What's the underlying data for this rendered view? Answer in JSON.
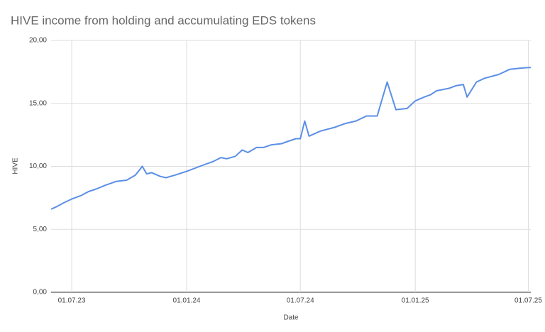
{
  "chart_data": {
    "type": "line",
    "title": "HIVE income from holding and accumulating EDS tokens",
    "x_label": "Date",
    "y_label": "HIVE",
    "x": [
      "2023-05-29",
      "2023-06-07",
      "2023-06-18",
      "2023-07-01",
      "2023-07-17",
      "2023-07-28",
      "2023-08-09",
      "2023-08-24",
      "2023-09-10",
      "2023-09-27",
      "2023-10-11",
      "2023-10-22",
      "2023-10-29",
      "2023-11-06",
      "2023-11-20",
      "2023-11-29",
      "2023-12-13",
      "2024-01-01",
      "2024-01-22",
      "2024-02-13",
      "2024-02-25",
      "2024-03-05",
      "2024-03-19",
      "2024-03-30",
      "2024-04-08",
      "2024-04-22",
      "2024-05-03",
      "2024-05-15",
      "2024-06-01",
      "2024-06-12",
      "2024-06-24",
      "2024-07-01",
      "2024-07-08",
      "2024-07-15",
      "2024-08-02",
      "2024-08-25",
      "2024-09-11",
      "2024-09-28",
      "2024-10-15",
      "2024-11-01",
      "2024-11-17",
      "2024-12-01",
      "2024-12-19",
      "2025-01-01",
      "2025-01-15",
      "2025-01-26",
      "2025-02-04",
      "2025-02-24",
      "2025-03-07",
      "2025-03-19",
      "2025-03-25",
      "2025-04-09",
      "2025-04-22",
      "2025-05-15",
      "2025-06-01",
      "2025-06-18",
      "2025-07-01",
      "2025-07-05"
    ],
    "series": [
      {
        "name": "HIVE",
        "color": "#5b8fe6",
        "values": [
          6.6,
          6.8,
          7.1,
          7.4,
          7.7,
          8.0,
          8.2,
          8.5,
          8.8,
          8.9,
          9.3,
          10.0,
          9.4,
          9.5,
          9.2,
          9.1,
          9.3,
          9.6,
          10.0,
          10.4,
          10.7,
          10.6,
          10.8,
          11.3,
          11.1,
          11.5,
          11.5,
          11.7,
          11.8,
          12.0,
          12.2,
          12.2,
          13.6,
          12.4,
          12.8,
          13.1,
          13.4,
          13.6,
          14.0,
          14.0,
          16.7,
          14.5,
          14.6,
          15.2,
          15.5,
          15.7,
          16.0,
          16.2,
          16.4,
          16.5,
          15.5,
          16.7,
          17.0,
          17.3,
          17.7,
          17.8,
          17.85,
          17.85
        ]
      }
    ],
    "xlim": [
      "2023-05-29",
      "2025-07-05"
    ],
    "xticks": [
      {
        "value": "2023-07-01",
        "label": "01.07.23"
      },
      {
        "value": "2024-01-01",
        "label": "01.01.24"
      },
      {
        "value": "2024-07-01",
        "label": "01.07.24"
      },
      {
        "value": "2025-01-01",
        "label": "01.01.25"
      },
      {
        "value": "2025-07-01",
        "label": "01.07.25"
      }
    ],
    "ylim": [
      0,
      20
    ],
    "yticks": [
      {
        "value": 0,
        "label": "0,00"
      },
      {
        "value": 5,
        "label": "5,00"
      },
      {
        "value": 10,
        "label": "10,00"
      },
      {
        "value": 15,
        "label": "15,00"
      },
      {
        "value": 20,
        "label": "20,00"
      }
    ],
    "grid": true
  }
}
